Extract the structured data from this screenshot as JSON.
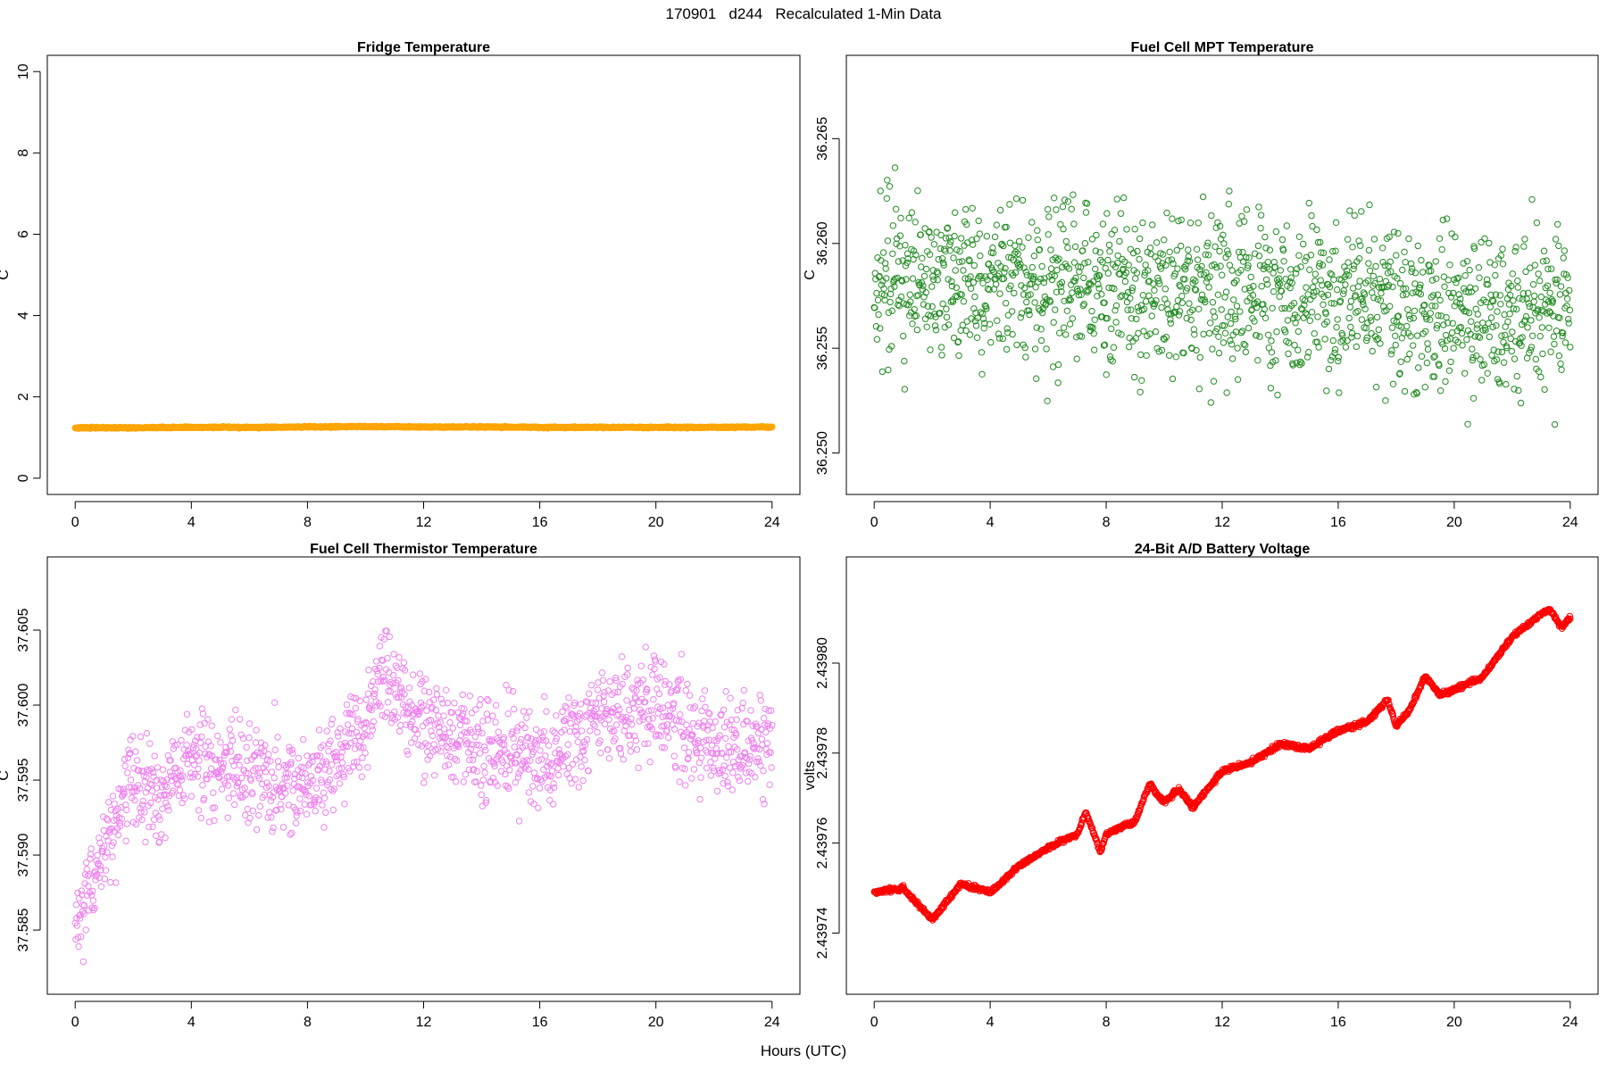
{
  "figure": {
    "title": "170901   d244   Recalculated 1-Min Data",
    "xlabel": "Hours (UTC)"
  },
  "chart_data": [
    {
      "type": "scatter",
      "title": "Fridge Temperature",
      "xlabel": "",
      "ylabel": "C",
      "xlim": [
        0,
        24
      ],
      "ylim": [
        0,
        10
      ],
      "xticks": [
        0,
        4,
        8,
        12,
        16,
        20,
        24
      ],
      "yticks": [
        0,
        2,
        4,
        6,
        8,
        10
      ],
      "ytick_labels": [
        "0",
        "2",
        "4",
        "6",
        "8",
        "10"
      ],
      "color": "#FFA500",
      "grid": false,
      "series": [
        {
          "summary": "1-min samples, nearly constant around 1.25 C",
          "x": [
            0,
            2,
            4,
            6,
            8,
            10,
            12,
            14,
            16,
            18,
            20,
            22,
            24
          ],
          "y": [
            1.24,
            1.24,
            1.25,
            1.25,
            1.26,
            1.27,
            1.26,
            1.26,
            1.25,
            1.25,
            1.25,
            1.25,
            1.26
          ]
        }
      ]
    },
    {
      "type": "scatter",
      "title": "Fuel Cell MPT Temperature",
      "xlabel": "",
      "ylabel": "C",
      "xlim": [
        0,
        24
      ],
      "ylim": [
        36.2488,
        36.2682
      ],
      "xticks": [
        0,
        4,
        8,
        12,
        16,
        20,
        24
      ],
      "yticks": [
        36.25,
        36.255,
        36.26,
        36.265
      ],
      "ytick_labels": [
        "36.250",
        "36.255",
        "36.260",
        "36.265"
      ],
      "color": "#228B22",
      "grid": false,
      "series": [
        {
          "summary": "1-min samples, noisy scatter between ~36.249 and ~36.268 C",
          "x": [
            0,
            2,
            4,
            6,
            8,
            10,
            12,
            14,
            16,
            18,
            20,
            22,
            24
          ],
          "y": [
            36.2585,
            36.2583,
            36.2582,
            36.2583,
            36.258,
            36.2578,
            36.2576,
            36.2574,
            36.2571,
            36.2569,
            36.2567,
            36.2566,
            36.2566
          ]
        }
      ]
    },
    {
      "type": "scatter",
      "title": "Fuel Cell Thermistor Temperature",
      "xlabel": "",
      "ylabel": "C",
      "xlim": [
        0,
        24
      ],
      "ylim": [
        37.5818,
        37.6088
      ],
      "xticks": [
        0,
        4,
        8,
        12,
        16,
        20,
        24
      ],
      "yticks": [
        37.585,
        37.59,
        37.595,
        37.6,
        37.605
      ],
      "ytick_labels": [
        "37.585",
        "37.590",
        "37.595",
        "37.600",
        "37.605"
      ],
      "color": "#EE82EE",
      "grid": false,
      "series": [
        {
          "summary": "1-min samples, rising from ~37.584 to ~37.597 C in first 2 hours, then noisy near 37.597",
          "x": [
            0,
            1,
            2,
            3,
            4,
            6,
            8,
            10,
            10.5,
            12,
            14,
            16,
            18,
            20,
            22,
            24
          ],
          "y": [
            37.5855,
            37.59,
            37.5955,
            37.594,
            37.5965,
            37.5955,
            37.5945,
            37.5985,
            37.6025,
            37.599,
            37.597,
            37.5965,
            37.599,
            37.6,
            37.597,
            37.5975
          ]
        }
      ]
    },
    {
      "type": "scatter",
      "title": "24-Bit A/D Battery Voltage",
      "xlabel": "",
      "ylabel": "volts",
      "xlim": [
        0,
        24
      ],
      "ylim": [
        2.43973,
        2.43982
      ],
      "xticks": [
        0,
        4,
        8,
        12,
        16,
        20,
        24
      ],
      "yticks": [
        2.43974,
        2.43976,
        2.43978,
        2.4398
      ],
      "ytick_labels": [
        "2.43974",
        "2.43976",
        "2.43978",
        "2.43980"
      ],
      "color": "#FF0000",
      "grid": false,
      "series": [
        {
          "summary": "1-min samples, gradually rising with oscillations from ~2.43975 to ~2.43981 volts",
          "x": [
            0,
            1,
            2,
            3,
            4,
            5,
            6,
            7,
            7.3,
            7.8,
            8,
            9,
            9.5,
            10,
            10.5,
            11,
            12,
            13,
            14,
            15,
            16,
            17,
            17.7,
            18,
            18.5,
            19,
            19.5,
            20,
            21,
            22,
            23,
            23.3,
            23.7,
            24
          ],
          "y": [
            2.439749,
            2.43975,
            2.439743,
            2.439751,
            2.439749,
            2.439755,
            2.439759,
            2.439762,
            2.439767,
            2.439758,
            2.439762,
            2.439765,
            2.439773,
            2.439769,
            2.439772,
            2.439768,
            2.439776,
            2.439778,
            2.439782,
            2.439781,
            2.439785,
            2.439787,
            2.439792,
            2.439786,
            2.43979,
            2.439797,
            2.439793,
            2.439794,
            2.439797,
            2.439806,
            2.439811,
            2.439812,
            2.439808,
            2.43981
          ]
        }
      ]
    }
  ]
}
